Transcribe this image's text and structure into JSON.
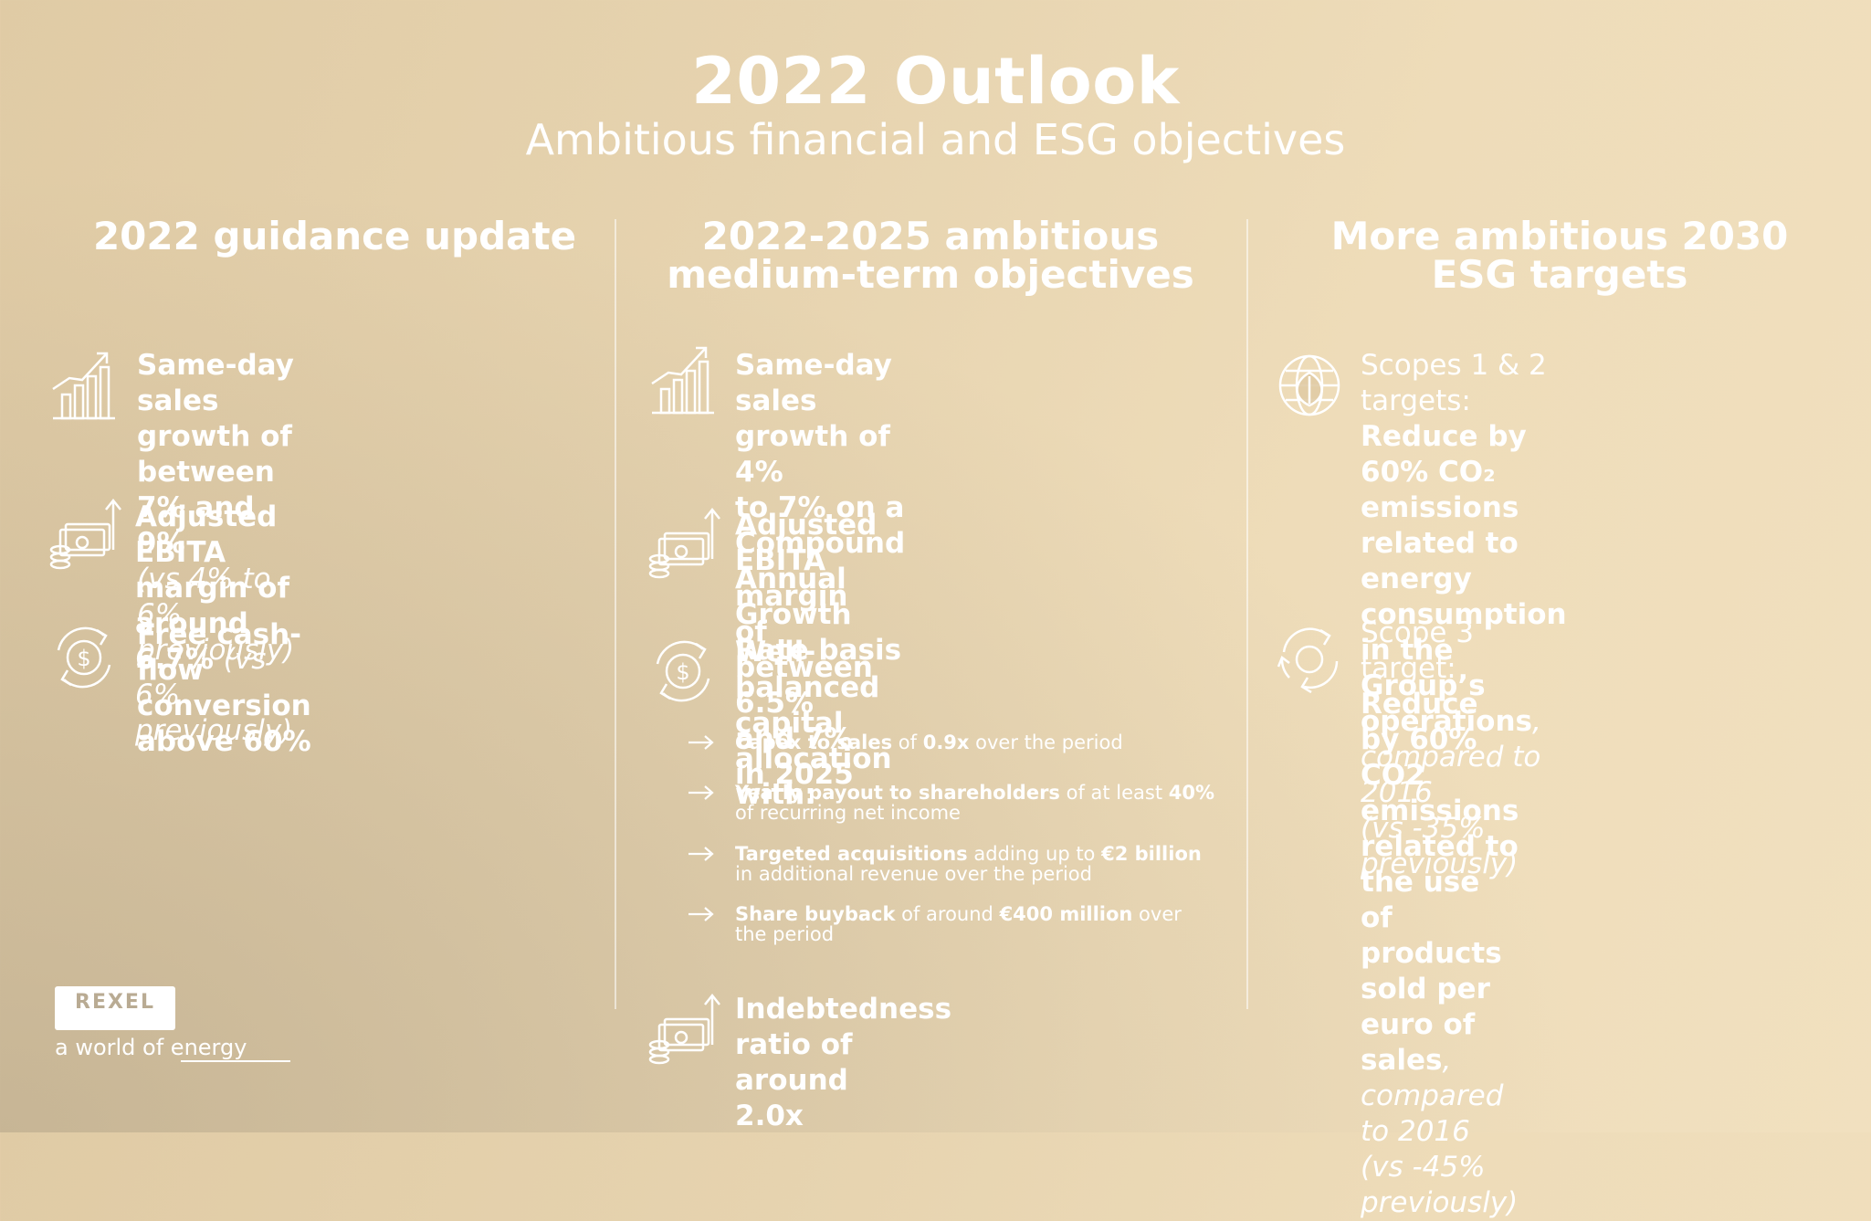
{
  "header": {
    "title": "2022 Outlook",
    "subtitle": "Ambitious financial and ESG objectives"
  },
  "col1": {
    "heading": "2022 guidance update",
    "item1": {
      "line1": "Same-day sales growth of",
      "line2": "between 7% and 9%",
      "line3": "(vs 4% to 6% previously)"
    },
    "item2": {
      "line1": "Adjusted EBITA margin of",
      "line2_bold": "around 6.7%",
      "line2_italic": "(vs 6% previously)"
    },
    "item3": {
      "line1": "Free cash-flow conversion",
      "line2": "above 60%"
    }
  },
  "col2": {
    "heading_line1": "2022-2025 ambitious",
    "heading_line2": "medium-term objectives",
    "item1": {
      "line1": "Same-day sales growth of 4%",
      "line2": "to 7% on a Compound Annual",
      "line3": "Growth Rate basis"
    },
    "item2": {
      "line1": "Adjusted EBITA margin of",
      "line2": "between 6.5% and 7% in 2025"
    },
    "item3": {
      "line1": "Well-balanced capital",
      "line2": "allocation with:"
    },
    "subs": [
      {
        "a": "Capex to sales",
        "b": " of ",
        "c": "0.9x",
        "d": " over the period",
        "e": ""
      },
      {
        "a": "Yearly payout to shareholders",
        "b": " of at least ",
        "c": "40%",
        "d": "",
        "e": "of recurring net income"
      },
      {
        "a": "Targeted acquisitions",
        "b": " adding up to ",
        "c": "€2 billion",
        "d": "",
        "e": "in additional revenue over the period"
      },
      {
        "a": "Share buyback",
        "b": " of around ",
        "c": "€400 million",
        "d": " over",
        "e": "the period"
      }
    ],
    "item4": {
      "line1": "Indebtedness ratio of around",
      "line2": "2.0x"
    }
  },
  "col3": {
    "heading_line1": "More ambitious 2030",
    "heading_line2": "ESG targets",
    "item1": {
      "label": "Scopes 1 & 2 targets:",
      "line1": "Reduce by 60% CO₂",
      "line2": "emissions related to energy",
      "line3": "consumption in the Group’s",
      "line4_bold": "operations",
      "line4_rest": ", compared to 2016",
      "line5": "(vs -35% previously)"
    },
    "item2": {
      "label": "Scope 3 target:",
      "line1": "Reduce by 60% CO2",
      "line2": "emissions related to the use",
      "line3": "of products sold per euro of",
      "line4_bold": "sales",
      "line4_rest": ", compared to 2016",
      "line5": "(vs -45% previously)"
    }
  },
  "logo": {
    "name": "REXEL",
    "tagline": "a world of energy"
  }
}
